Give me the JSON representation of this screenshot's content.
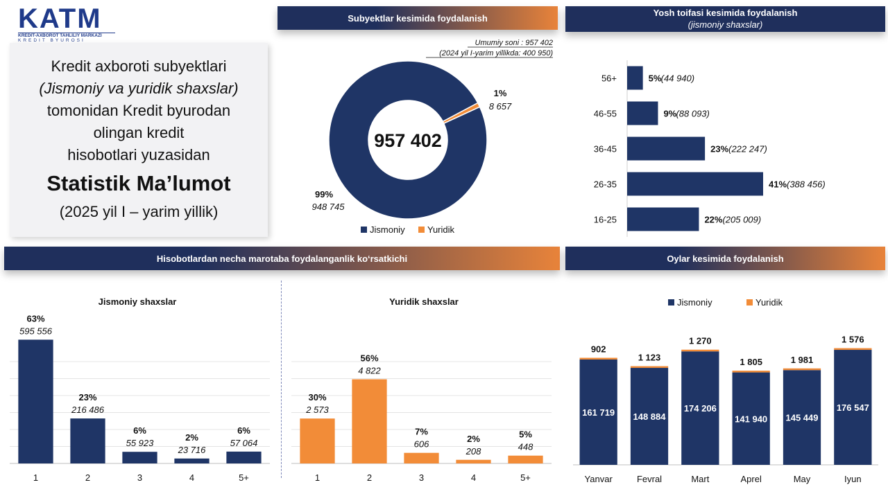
{
  "logo": {
    "text": "KATM",
    "line1": "KREDIT-AXBOROT TAHLILIY MARKAZI",
    "line2": "KREDIT BYUROSI"
  },
  "title_card": {
    "line1": "Kredit axboroti subyektlari",
    "line2": "(Jismoniy va yuridik shaxslar)",
    "line3": "tomonidan Kredit byurodan",
    "line4": "olingan kredit",
    "line5": "hisobotlari yuzasidan",
    "headline": "Statistik Ma’lumot",
    "period": "(2025 yil I – yarim yillik)"
  },
  "headers": {
    "subjects": "Subyektlar kesimida foydalanish",
    "age_title": "Yosh toifasi kesimida foydalanish",
    "age_sub": "(jismoniy shaxslar)",
    "frequency": "Hisobotlardan necha marotaba foydalanganlik ko‘rsatkichi",
    "months": "Oylar kesimida foydalanish"
  },
  "colors": {
    "navy": "#1f3566",
    "orange": "#f28c38"
  },
  "chart_data": [
    {
      "id": "subjects",
      "type": "pie",
      "notes": [
        "Umumiy soni : 957 402",
        "(2024 yil I-yarim yillikda: 400 950)"
      ],
      "center_label": "957 402",
      "slices": [
        {
          "name": "Jismoniy",
          "value": 948745,
          "value_label": "948 745",
          "pct_label": "99%"
        },
        {
          "name": "Yuridik",
          "value": 8657,
          "value_label": "8 657",
          "pct_label": "1%"
        }
      ],
      "legend": [
        "Jismoniy",
        "Yuridik"
      ],
      "legend_position": "bottom"
    },
    {
      "id": "age",
      "type": "bar",
      "orientation": "horizontal",
      "categories": [
        "56+",
        "46-55",
        "36-45",
        "26-35",
        "16-25"
      ],
      "values": [
        44940,
        88093,
        222247,
        388456,
        205009
      ],
      "pct_labels": [
        "5%",
        "9%",
        "23%",
        "41%",
        "22%"
      ],
      "value_labels": [
        "(44 940)",
        "(88 093)",
        "(222 247)",
        "(388 456)",
        "(205 009)"
      ],
      "xlim": [
        0,
        950000
      ]
    },
    {
      "id": "freq_individual",
      "type": "bar",
      "title": "Jismoniy shaxslar",
      "categories": [
        "1",
        "2",
        "3",
        "4",
        "5+"
      ],
      "values": [
        595556,
        216486,
        55923,
        23716,
        57064
      ],
      "pct_labels": [
        "63%",
        "23%",
        "6%",
        "2%",
        "6%"
      ],
      "value_labels": [
        "595 556",
        "216 486",
        "55 923",
        "23 716",
        "57 064"
      ],
      "ylim": [
        0,
        630000
      ],
      "grid": true,
      "color": "#1f3566"
    },
    {
      "id": "freq_legal",
      "type": "bar",
      "title": "Yuridik shaxslar",
      "categories": [
        "1",
        "2",
        "3",
        "4",
        "5+"
      ],
      "values": [
        2573,
        4822,
        606,
        208,
        448
      ],
      "pct_labels": [
        "30%",
        "56%",
        "7%",
        "2%",
        "5%"
      ],
      "value_labels": [
        "2 573",
        "4 822",
        "606",
        "208",
        "448"
      ],
      "ylim": [
        0,
        7500
      ],
      "grid": true,
      "color": "#f28c38"
    },
    {
      "id": "months",
      "type": "bar",
      "stacked": true,
      "categories": [
        "Yanvar",
        "Fevral",
        "Mart",
        "Aprel",
        "May",
        "Iyun"
      ],
      "series": [
        {
          "name": "Jismoniy",
          "values": [
            161719,
            148884,
            174206,
            141940,
            145449,
            176547
          ],
          "labels": [
            "161 719",
            "148 884",
            "174 206",
            "141 940",
            "145 449",
            "176 547"
          ]
        },
        {
          "name": "Yuridik",
          "values": [
            902,
            1123,
            1270,
            1805,
            1981,
            1576
          ],
          "labels": [
            "902",
            "1 123",
            "1 270",
            "1 805",
            "1 981",
            "1 576"
          ]
        }
      ],
      "ylim": [
        0,
        200000
      ],
      "legend": [
        "Jismoniy",
        "Yuridik"
      ],
      "legend_position": "top"
    }
  ]
}
